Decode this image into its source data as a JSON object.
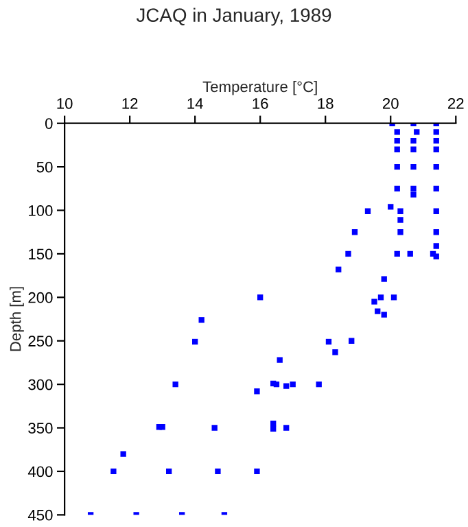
{
  "chart_data": {
    "type": "scatter",
    "title": "JCAQ in January, 1989",
    "xlabel": "Temperature [°C]",
    "ylabel": "Depth [m]",
    "xlim": [
      10,
      22
    ],
    "xticks": [
      10,
      12,
      14,
      16,
      18,
      20,
      22
    ],
    "ylim": [
      450,
      0
    ],
    "yticks": [
      0,
      50,
      100,
      150,
      200,
      250,
      300,
      350,
      400,
      450
    ],
    "marker": "square",
    "grid": false,
    "series": [
      {
        "color": "#0000ff",
        "x": [
          20.05,
          20.2,
          20.2,
          20.2,
          20.2,
          20.2,
          20.7,
          20.8,
          20.7,
          20.7,
          20.7,
          20.7,
          20.7,
          21.4,
          21.4,
          21.4,
          21.4,
          21.4,
          21.4,
          20.0,
          19.3,
          20.3,
          21.4,
          20.3,
          18.9,
          20.3,
          21.4,
          21.4,
          18.7,
          20.2,
          20.6,
          21.3,
          21.4,
          18.4,
          19.8,
          16.0,
          19.7,
          20.1,
          19.5,
          19.6,
          19.8,
          14.2,
          14.0,
          18.1,
          18.8,
          18.3,
          16.6,
          13.4,
          16.4,
          16.5,
          16.8,
          17.0,
          17.8,
          15.9,
          12.9,
          13.0,
          14.6,
          16.4,
          16.4,
          16.8,
          11.8,
          11.5,
          13.2,
          14.7,
          15.9,
          10.8,
          12.2,
          13.6,
          14.9
        ],
        "values": [
          0,
          10,
          20,
          30,
          50,
          75,
          0,
          10,
          20,
          30,
          50,
          75,
          82,
          0,
          10,
          20,
          30,
          50,
          75,
          96,
          101,
          101,
          101,
          111,
          125,
          125,
          125,
          141,
          150,
          150,
          150,
          150,
          153,
          168,
          179,
          200,
          200,
          200,
          205,
          216,
          220,
          226,
          251,
          251,
          250,
          263,
          272,
          300,
          299,
          300,
          302,
          300,
          300,
          308,
          349,
          349,
          350,
          345,
          351,
          350,
          380,
          400,
          400,
          400,
          400,
          450,
          450,
          450,
          450
        ]
      }
    ]
  }
}
